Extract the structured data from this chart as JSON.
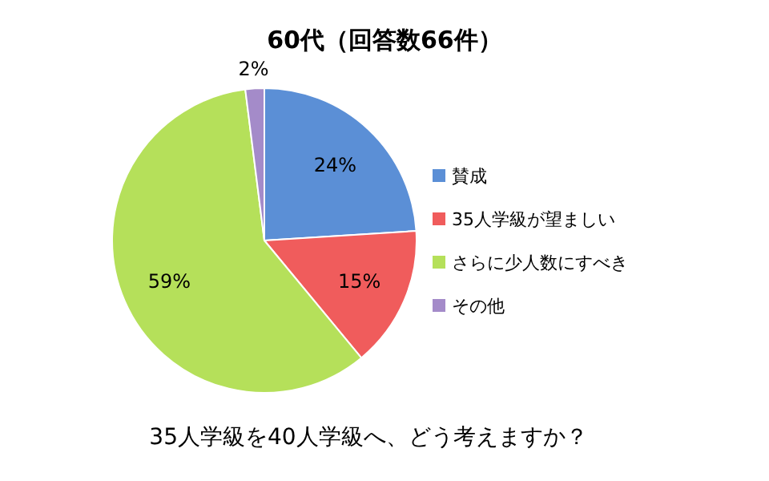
{
  "chart_data": {
    "type": "pie",
    "title": "60代（回答数66件）",
    "categories": [
      "賛成",
      "35人学級が望ましい",
      "さらに少人数にすべき",
      "その他"
    ],
    "values": [
      24,
      15,
      59,
      2
    ],
    "colors": [
      "#5b8fd6",
      "#f05c5c",
      "#b5e05a",
      "#a48bc9"
    ],
    "value_labels": [
      "24%",
      "15%",
      "59%",
      "2%"
    ],
    "legend": "right",
    "annotations": [
      "35人学級を40人学級へ、どう考えますか？"
    ]
  }
}
